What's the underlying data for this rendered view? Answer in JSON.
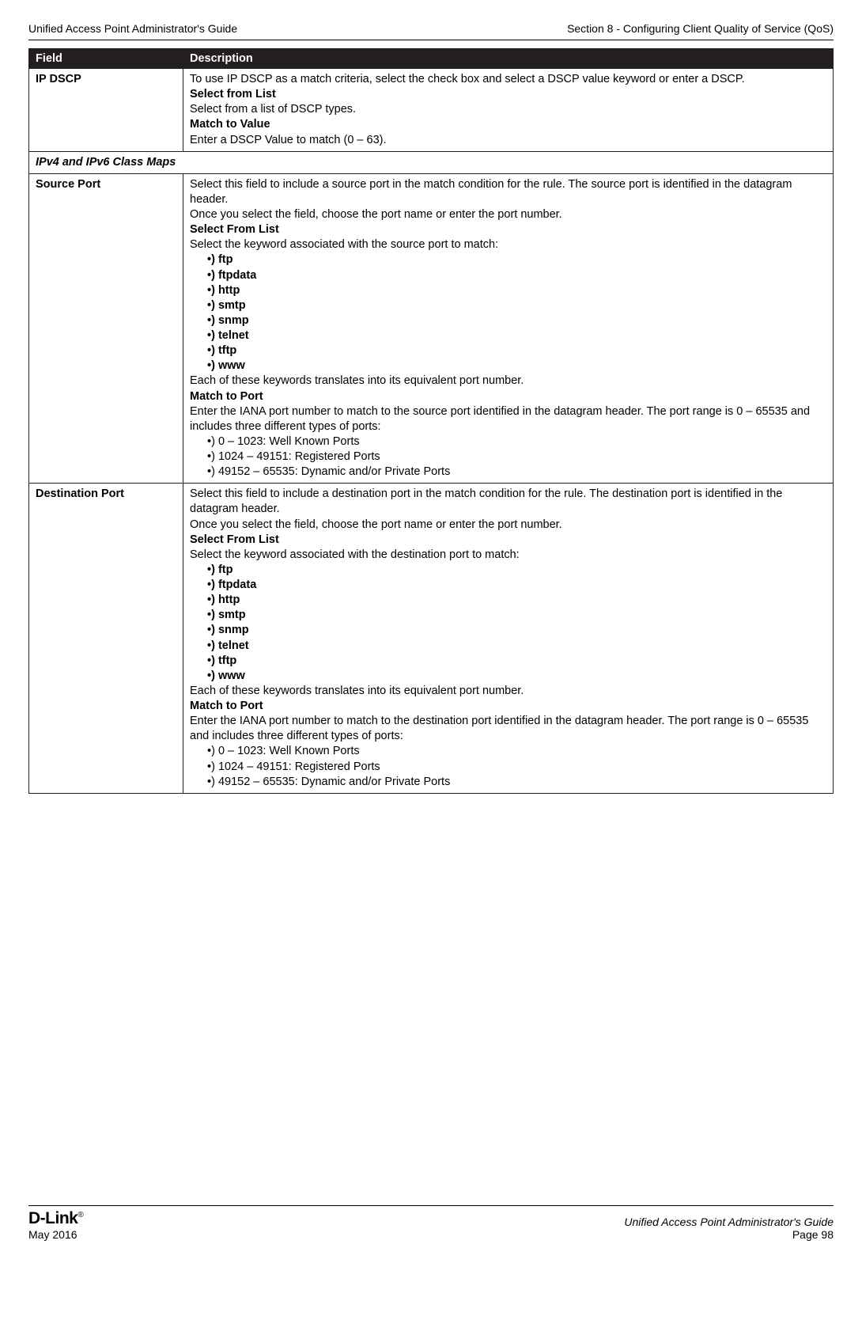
{
  "header": {
    "left": "Unified Access Point Administrator's Guide",
    "right": "Section 8 - Configuring Client Quality of Service (QoS)"
  },
  "table": {
    "col_field": "Field",
    "col_desc": "Description",
    "rows": [
      {
        "type": "row",
        "field": "IP DSCP",
        "desc_html": "To use IP DSCP as a match criteria, select the check box and select a DSCP value keyword or enter a DSCP.<br><b>Select from List</b><br>Select from a list of DSCP types.<br><b>Match to Value</b><br>Enter a DSCP Value to match (0 – 63)."
      },
      {
        "type": "section",
        "field": "IPv4 and IPv6 Class Maps"
      },
      {
        "type": "row",
        "field": "Source Port",
        "desc_html": "Select this field to include a source port in the match condition for the rule. The source port is identified in the datagram header.<br>Once you select the field, choose the port name or enter the port number.<br><b>Select From List</b><br>Select the keyword associated with the source port to match:<ul class=\"bold\"><li>ftp</li><li>ftpdata</li><li>http</li><li>smtp</li><li>snmp</li><li>telnet</li><li>tftp</li><li>www</li></ul>Each of these keywords translates into its equivalent port number.<br><b>Match to Port</b><br>Enter the IANA port number to match to the source port identified in the datagram header. The port range is 0 – 65535 and includes three different types of ports:<ul class=\"plain\"><li>0 – 1023: Well Known Ports</li><li>1024 – 49151: Registered Ports</li><li>49152 – 65535: Dynamic and/or Private Ports</li></ul>"
      },
      {
        "type": "row",
        "field": "Destination Port",
        "desc_html": "Select this field to include a destination port in the match condition for the rule. The destination port is identified in the datagram header.<br>Once you select the field, choose the port name or enter the port number.<br><b>Select From List</b><br>Select the keyword associated with the destination port to match:<ul class=\"bold\"><li>ftp</li><li>ftpdata</li><li>http</li><li>smtp</li><li>snmp</li><li>telnet</li><li>tftp</li><li>www</li></ul>Each of these keywords translates into its equivalent port number.<br><b>Match to Port</b><br>Enter the IANA port number to match to the destination port identified in the datagram header. The port range is 0 – 65535 and includes three different types of ports:<ul class=\"plain\"><li>0 – 1023: Well Known Ports</li><li>1024 – 49151: Registered Ports</li><li>49152 – 65535: Dynamic and/or Private Ports</li></ul>"
      }
    ]
  },
  "footer": {
    "date": "May 2016",
    "guide": "Unified Access Point Administrator's Guide",
    "page": "Page 98",
    "logo": "D-Link"
  }
}
